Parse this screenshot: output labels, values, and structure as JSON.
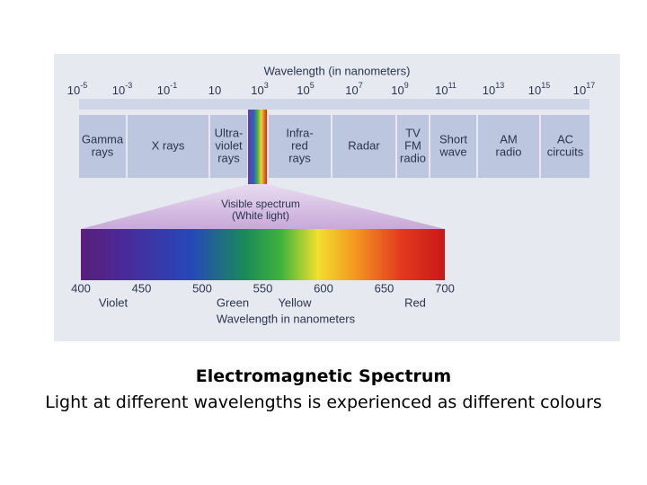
{
  "figure": {
    "scale_title": "Wavelength (in nanometers)",
    "scale_labels": [
      {
        "base": "10",
        "exp": "-5"
      },
      {
        "base": "10",
        "exp": "-3"
      },
      {
        "base": "10",
        "exp": "-1"
      },
      {
        "base": "10"
      },
      {
        "base": "10",
        "exp": "3"
      },
      {
        "base": "10",
        "exp": "5"
      },
      {
        "base": "10",
        "exp": "7"
      },
      {
        "base": "10",
        "exp": "9"
      },
      {
        "base": "10",
        "exp": "11"
      },
      {
        "base": "10",
        "exp": "13"
      },
      {
        "base": "10",
        "exp": "15"
      },
      {
        "base": "10",
        "exp": "17"
      }
    ],
    "bands": [
      {
        "lines": [
          "Gamma",
          "rays"
        ]
      },
      {
        "lines": [
          "X rays"
        ]
      },
      {
        "lines": [
          "Ultra-",
          "violet",
          "rays"
        ]
      },
      {
        "lines": [
          "Infra-",
          "red",
          "rays"
        ]
      },
      {
        "lines": [
          "Radar"
        ]
      },
      {
        "lines": [
          "TV",
          "FM",
          "radio"
        ]
      },
      {
        "lines": [
          "Short",
          "wave"
        ]
      },
      {
        "lines": [
          "AM",
          "radio"
        ]
      },
      {
        "lines": [
          "AC",
          "circuits"
        ]
      }
    ],
    "visible_label": [
      "Visible spectrum",
      "(White light)"
    ],
    "nm_ticks": [
      400,
      450,
      500,
      550,
      600,
      650,
      700
    ],
    "colour_names": [
      "Violet",
      "Green",
      "Yellow",
      "Red"
    ],
    "nm_axis_title": "Wavelength in nanometers"
  },
  "caption": {
    "title": "Electromagnetic Spectrum",
    "text": "Light at different wavelengths is experienced as different colours"
  }
}
